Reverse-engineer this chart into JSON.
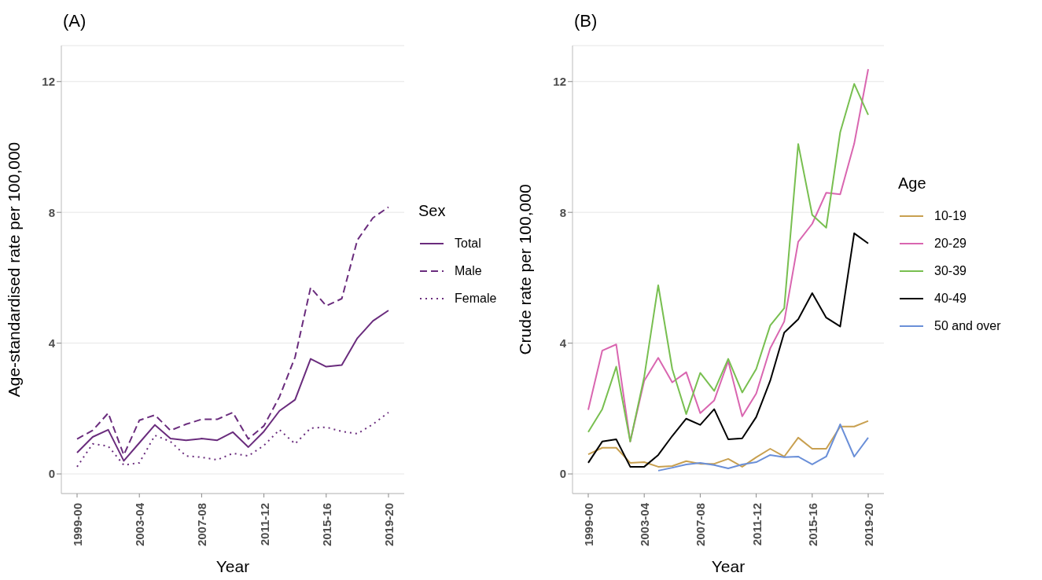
{
  "chart_data": [
    {
      "type": "line",
      "title": "(A)",
      "xlabel": "Year",
      "ylabel": "Age-standardised rate per 100,000",
      "legend_title": "Sex",
      "legend": "right",
      "grid": "y",
      "marker": "none",
      "categories": [
        "1999-00",
        null,
        null,
        null,
        "2003-04",
        null,
        null,
        null,
        "2007-08",
        null,
        null,
        null,
        "2011-12",
        null,
        null,
        null,
        "2015-16",
        null,
        null,
        null,
        "2019-20"
      ],
      "ylim": [
        -0.6,
        13.1
      ],
      "yticks": [
        0,
        4,
        8,
        12
      ],
      "series": [
        {
          "name": "Total",
          "color": "#6a2c7d",
          "line_style": "solid",
          "values": [
            0.65,
            1.13,
            1.35,
            0.4,
            0.95,
            1.5,
            1.08,
            1.03,
            1.08,
            1.03,
            1.28,
            0.82,
            1.3,
            1.93,
            2.27,
            3.52,
            3.28,
            3.33,
            4.15,
            4.68,
            5.0
          ]
        },
        {
          "name": "Male",
          "color": "#6a2c7d",
          "line_style": "dashed",
          "values": [
            1.07,
            1.33,
            1.86,
            0.58,
            1.64,
            1.8,
            1.33,
            1.52,
            1.67,
            1.67,
            1.88,
            1.07,
            1.47,
            2.36,
            3.57,
            5.7,
            5.14,
            5.36,
            7.15,
            7.83,
            8.16
          ]
        },
        {
          "name": "Female",
          "color": "#6a2c7d",
          "line_style": "dotted",
          "values": [
            0.22,
            0.92,
            0.85,
            0.27,
            0.34,
            1.18,
            0.99,
            0.55,
            0.51,
            0.43,
            0.63,
            0.55,
            0.87,
            1.35,
            0.92,
            1.4,
            1.43,
            1.3,
            1.23,
            1.52,
            1.88
          ]
        }
      ]
    },
    {
      "type": "line",
      "title": "(B)",
      "xlabel": "Year",
      "ylabel": "Crude rate per 100,000",
      "legend_title": "Age",
      "legend": "right",
      "grid": "y",
      "marker": "none",
      "categories": [
        "1999-00",
        null,
        null,
        null,
        "2003-04",
        null,
        null,
        null,
        "2007-08",
        null,
        null,
        null,
        "2011-12",
        null,
        null,
        null,
        "2015-16",
        null,
        null,
        null,
        "2019-20"
      ],
      "ylim": [
        -0.6,
        13.1
      ],
      "yticks": [
        0,
        4,
        8,
        12
      ],
      "series": [
        {
          "name": "10-19",
          "color": "#c8a050",
          "line_style": "solid",
          "values": [
            0.6,
            0.8,
            0.8,
            0.34,
            0.36,
            0.22,
            0.24,
            0.39,
            0.31,
            0.31,
            0.46,
            0.22,
            0.51,
            0.77,
            0.53,
            1.11,
            0.77,
            0.77,
            1.45,
            1.45,
            1.62
          ]
        },
        {
          "name": "20-29",
          "color": "#d966b0",
          "line_style": "solid",
          "values": [
            1.96,
            3.77,
            3.96,
            0.99,
            2.85,
            3.55,
            2.8,
            3.11,
            1.86,
            2.25,
            3.45,
            1.76,
            2.46,
            3.84,
            4.66,
            7.1,
            7.65,
            8.6,
            8.55,
            10.1,
            12.38
          ]
        },
        {
          "name": "30-39",
          "color": "#78bf50",
          "line_style": "solid",
          "values": [
            1.28,
            1.98,
            3.28,
            0.99,
            2.97,
            5.77,
            3.21,
            1.83,
            3.09,
            2.54,
            3.52,
            2.49,
            3.21,
            4.54,
            5.07,
            10.09,
            7.92,
            7.53,
            10.45,
            11.93,
            10.98
          ]
        },
        {
          "name": "40-49",
          "color": "#000000",
          "line_style": "solid",
          "values": [
            0.34,
            0.99,
            1.06,
            0.22,
            0.22,
            0.58,
            1.16,
            1.69,
            1.5,
            1.98,
            1.06,
            1.09,
            1.74,
            2.85,
            4.32,
            4.73,
            5.53,
            4.78,
            4.51,
            7.36,
            7.05
          ]
        },
        {
          "name": "50 and over",
          "color": "#6a8fd8",
          "line_style": "solid",
          "values": [
            null,
            null,
            null,
            null,
            null,
            0.1,
            0.19,
            0.29,
            0.34,
            0.27,
            0.17,
            0.29,
            0.36,
            0.58,
            0.51,
            0.53,
            0.29,
            0.53,
            1.52,
            0.53,
            1.11
          ]
        }
      ]
    }
  ]
}
